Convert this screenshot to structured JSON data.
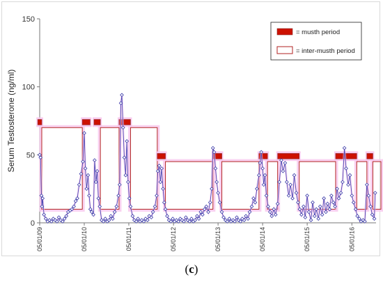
{
  "panel_label": {
    "open": "(",
    "letter": "c",
    "close": ")"
  },
  "colors": {
    "musth_fill": "#cc1100",
    "musth_edge": "#8b2b2b",
    "inter_edge": "#b22222",
    "highlight": "#f7c5ec",
    "line": "#4b4bb5",
    "marker": "#3a3aa8"
  },
  "chart_data": {
    "type": "line",
    "title": "",
    "xlabel": "",
    "ylabel": "Serum Testosterone  (ng/ml)",
    "ylim": [
      0,
      150
    ],
    "yticks": [
      0,
      50,
      100,
      150
    ],
    "xlim": [
      "2009-05-01",
      "2016-11-15"
    ],
    "xticks": [
      {
        "date": "2009-05-01",
        "label": "05/01/09"
      },
      {
        "date": "2010-05-01",
        "label": "05/01/10"
      },
      {
        "date": "2011-05-01",
        "label": "05/01/11"
      },
      {
        "date": "2012-05-01",
        "label": "05/01/12"
      },
      {
        "date": "2013-05-01",
        "label": "05/01/13"
      },
      {
        "date": "2014-05-01",
        "label": "05/01/14"
      },
      {
        "date": "2015-05-01",
        "label": "05/01/15"
      },
      {
        "date": "2016-05-01",
        "label": "05/01/16"
      }
    ],
    "legend": {
      "position": "top-right",
      "items": [
        {
          "kind": "musth",
          "label": "= musth period"
        },
        {
          "kind": "inter",
          "label": "= inter-musth period"
        }
      ]
    },
    "musth_periods": [
      {
        "start": "2009-04-15",
        "end": "2009-05-18"
      },
      {
        "start": "2010-04-15",
        "end": "2010-06-18"
      },
      {
        "start": "2010-07-20",
        "end": "2010-09-10"
      },
      {
        "start": "2011-02-10",
        "end": "2011-05-15"
      },
      {
        "start": "2011-12-20",
        "end": "2012-02-25"
      },
      {
        "start": "2013-03-20",
        "end": "2013-06-01"
      },
      {
        "start": "2014-04-01",
        "end": "2014-06-10"
      },
      {
        "start": "2014-09-01",
        "end": "2015-02-25"
      },
      {
        "start": "2015-12-20",
        "end": "2016-06-10"
      },
      {
        "start": "2016-09-01",
        "end": "2016-10-20"
      }
    ],
    "inter_musth_periods": [
      {
        "start": "2009-05-18",
        "end": "2010-04-15",
        "top": 70,
        "bottom": 10
      },
      {
        "start": "2010-09-10",
        "end": "2011-02-10",
        "top": 70,
        "bottom": 10
      },
      {
        "start": "2011-05-15",
        "end": "2011-12-20",
        "top": 70,
        "bottom": 10
      },
      {
        "start": "2012-02-25",
        "end": "2013-03-20",
        "top": 45,
        "bottom": 10
      },
      {
        "start": "2013-06-01",
        "end": "2014-04-01",
        "top": 45,
        "bottom": 10
      },
      {
        "start": "2014-06-10",
        "end": "2014-09-01",
        "top": 45,
        "bottom": 10
      },
      {
        "start": "2015-02-25",
        "end": "2015-12-20",
        "top": 45,
        "bottom": 10
      },
      {
        "start": "2016-06-10",
        "end": "2016-09-01",
        "top": 45,
        "bottom": 10
      },
      {
        "start": "2016-10-20",
        "end": "2016-12-25",
        "top": 45,
        "bottom": 10
      }
    ],
    "series": [
      {
        "values": [
          [
            "2009-05-01",
            50
          ],
          [
            "2009-05-08",
            48
          ],
          [
            "2009-05-15",
            20
          ],
          [
            "2009-05-20",
            12
          ],
          [
            "2009-05-25",
            18
          ],
          [
            "2009-06-05",
            6
          ],
          [
            "2009-06-20",
            3
          ],
          [
            "2009-07-05",
            1
          ],
          [
            "2009-07-20",
            2
          ],
          [
            "2009-08-05",
            1
          ],
          [
            "2009-08-20",
            3
          ],
          [
            "2009-09-05",
            2
          ],
          [
            "2009-09-20",
            1
          ],
          [
            "2009-10-05",
            4
          ],
          [
            "2009-10-20",
            2
          ],
          [
            "2009-11-05",
            1
          ],
          [
            "2009-11-20",
            3
          ],
          [
            "2009-12-05",
            5
          ],
          [
            "2009-12-20",
            8
          ],
          [
            "2010-01-05",
            9
          ],
          [
            "2010-01-20",
            10
          ],
          [
            "2010-02-05",
            12
          ],
          [
            "2010-02-20",
            16
          ],
          [
            "2010-03-05",
            18
          ],
          [
            "2010-03-20",
            28
          ],
          [
            "2010-04-05",
            36
          ],
          [
            "2010-04-20",
            45
          ],
          [
            "2010-05-01",
            66
          ],
          [
            "2010-05-10",
            40
          ],
          [
            "2010-05-20",
            25
          ],
          [
            "2010-06-01",
            35
          ],
          [
            "2010-06-10",
            20
          ],
          [
            "2010-06-20",
            10
          ],
          [
            "2010-07-01",
            8
          ],
          [
            "2010-07-15",
            6
          ],
          [
            "2010-07-25",
            46
          ],
          [
            "2010-08-05",
            30
          ],
          [
            "2010-08-15",
            38
          ],
          [
            "2010-08-25",
            18
          ],
          [
            "2010-09-05",
            12
          ],
          [
            "2010-09-20",
            2
          ],
          [
            "2010-10-05",
            1
          ],
          [
            "2010-10-20",
            3
          ],
          [
            "2010-11-05",
            1
          ],
          [
            "2010-11-20",
            2
          ],
          [
            "2010-12-05",
            5
          ],
          [
            "2010-12-20",
            3
          ],
          [
            "2011-01-05",
            8
          ],
          [
            "2011-01-20",
            12
          ],
          [
            "2011-02-05",
            20
          ],
          [
            "2011-02-15",
            28
          ],
          [
            "2011-02-25",
            88
          ],
          [
            "2011-03-05",
            94
          ],
          [
            "2011-03-15",
            70
          ],
          [
            "2011-03-25",
            48
          ],
          [
            "2011-04-05",
            35
          ],
          [
            "2011-04-15",
            60
          ],
          [
            "2011-04-25",
            30
          ],
          [
            "2011-05-05",
            18
          ],
          [
            "2011-05-15",
            12
          ],
          [
            "2011-06-01",
            5
          ],
          [
            "2011-06-15",
            2
          ],
          [
            "2011-07-01",
            1
          ],
          [
            "2011-07-15",
            3
          ],
          [
            "2011-08-01",
            1
          ],
          [
            "2011-08-15",
            2
          ],
          [
            "2011-09-01",
            1
          ],
          [
            "2011-09-15",
            3
          ],
          [
            "2011-10-01",
            2
          ],
          [
            "2011-10-15",
            5
          ],
          [
            "2011-11-01",
            4
          ],
          [
            "2011-11-15",
            8
          ],
          [
            "2011-12-01",
            12
          ],
          [
            "2011-12-15",
            20
          ],
          [
            "2011-12-25",
            38
          ],
          [
            "2012-01-05",
            42
          ],
          [
            "2012-01-15",
            30
          ],
          [
            "2012-01-25",
            40
          ],
          [
            "2012-02-05",
            25
          ],
          [
            "2012-02-15",
            15
          ],
          [
            "2012-02-25",
            10
          ],
          [
            "2012-03-10",
            5
          ],
          [
            "2012-03-25",
            2
          ],
          [
            "2012-04-10",
            1
          ],
          [
            "2012-04-25",
            3
          ],
          [
            "2012-05-10",
            1
          ],
          [
            "2012-05-25",
            2
          ],
          [
            "2012-06-10",
            1
          ],
          [
            "2012-06-25",
            3
          ],
          [
            "2012-07-10",
            2
          ],
          [
            "2012-07-25",
            1
          ],
          [
            "2012-08-10",
            4
          ],
          [
            "2012-08-25",
            2
          ],
          [
            "2012-09-10",
            1
          ],
          [
            "2012-09-25",
            3
          ],
          [
            "2012-10-10",
            1
          ],
          [
            "2012-10-25",
            2
          ],
          [
            "2012-11-10",
            5
          ],
          [
            "2012-11-25",
            3
          ],
          [
            "2012-12-10",
            8
          ],
          [
            "2012-12-25",
            6
          ],
          [
            "2013-01-10",
            10
          ],
          [
            "2013-01-25",
            12
          ],
          [
            "2013-02-10",
            8
          ],
          [
            "2013-02-25",
            15
          ],
          [
            "2013-03-10",
            25
          ],
          [
            "2013-03-20",
            55
          ],
          [
            "2013-03-30",
            52
          ],
          [
            "2013-04-10",
            40
          ],
          [
            "2013-04-20",
            30
          ],
          [
            "2013-05-01",
            22
          ],
          [
            "2013-05-15",
            15
          ],
          [
            "2013-06-01",
            8
          ],
          [
            "2013-06-15",
            4
          ],
          [
            "2013-07-01",
            2
          ],
          [
            "2013-07-15",
            1
          ],
          [
            "2013-08-01",
            3
          ],
          [
            "2013-08-15",
            1
          ],
          [
            "2013-09-01",
            2
          ],
          [
            "2013-09-15",
            1
          ],
          [
            "2013-10-01",
            4
          ],
          [
            "2013-10-15",
            2
          ],
          [
            "2013-11-01",
            1
          ],
          [
            "2013-11-15",
            3
          ],
          [
            "2013-12-01",
            2
          ],
          [
            "2013-12-15",
            5
          ],
          [
            "2014-01-01",
            3
          ],
          [
            "2014-01-15",
            8
          ],
          [
            "2014-02-01",
            12
          ],
          [
            "2014-02-15",
            18
          ],
          [
            "2014-03-01",
            15
          ],
          [
            "2014-03-15",
            25
          ],
          [
            "2014-04-01",
            35
          ],
          [
            "2014-04-10",
            44
          ],
          [
            "2014-04-20",
            52
          ],
          [
            "2014-05-01",
            40
          ],
          [
            "2014-05-10",
            28
          ],
          [
            "2014-05-20",
            35
          ],
          [
            "2014-06-01",
            20
          ],
          [
            "2014-06-15",
            12
          ],
          [
            "2014-07-01",
            8
          ],
          [
            "2014-07-15",
            5
          ],
          [
            "2014-08-01",
            10
          ],
          [
            "2014-08-15",
            6
          ],
          [
            "2014-09-01",
            14
          ],
          [
            "2014-09-15",
            30
          ],
          [
            "2014-10-01",
            46
          ],
          [
            "2014-10-15",
            38
          ],
          [
            "2014-11-01",
            44
          ],
          [
            "2014-11-15",
            30
          ],
          [
            "2014-12-01",
            20
          ],
          [
            "2014-12-15",
            28
          ],
          [
            "2015-01-01",
            18
          ],
          [
            "2015-01-15",
            35
          ],
          [
            "2015-02-01",
            22
          ],
          [
            "2015-02-15",
            15
          ],
          [
            "2015-03-01",
            10
          ],
          [
            "2015-03-15",
            6
          ],
          [
            "2015-04-01",
            12
          ],
          [
            "2015-04-15",
            4
          ],
          [
            "2015-05-01",
            20
          ],
          [
            "2015-05-15",
            8
          ],
          [
            "2015-06-01",
            2
          ],
          [
            "2015-06-15",
            15
          ],
          [
            "2015-07-01",
            5
          ],
          [
            "2015-07-15",
            10
          ],
          [
            "2015-08-01",
            3
          ],
          [
            "2015-08-15",
            12
          ],
          [
            "2015-09-01",
            6
          ],
          [
            "2015-09-15",
            18
          ],
          [
            "2015-10-01",
            8
          ],
          [
            "2015-10-15",
            14
          ],
          [
            "2015-11-01",
            10
          ],
          [
            "2015-11-15",
            20
          ],
          [
            "2015-12-01",
            15
          ],
          [
            "2015-12-15",
            12
          ],
          [
            "2016-01-01",
            25
          ],
          [
            "2016-01-15",
            18
          ],
          [
            "2016-02-01",
            22
          ],
          [
            "2016-02-15",
            30
          ],
          [
            "2016-03-01",
            55
          ],
          [
            "2016-03-15",
            40
          ],
          [
            "2016-04-01",
            28
          ],
          [
            "2016-04-15",
            35
          ],
          [
            "2016-05-01",
            20
          ],
          [
            "2016-05-15",
            15
          ],
          [
            "2016-06-01",
            10
          ],
          [
            "2016-06-15",
            5
          ],
          [
            "2016-07-01",
            3
          ],
          [
            "2016-07-15",
            1
          ],
          [
            "2016-08-01",
            2
          ],
          [
            "2016-08-15",
            1
          ],
          [
            "2016-09-01",
            28
          ],
          [
            "2016-09-15",
            20
          ],
          [
            "2016-10-01",
            12
          ],
          [
            "2016-10-15",
            6
          ],
          [
            "2016-11-01",
            3
          ],
          [
            "2016-11-08",
            22
          ]
        ]
      }
    ]
  }
}
